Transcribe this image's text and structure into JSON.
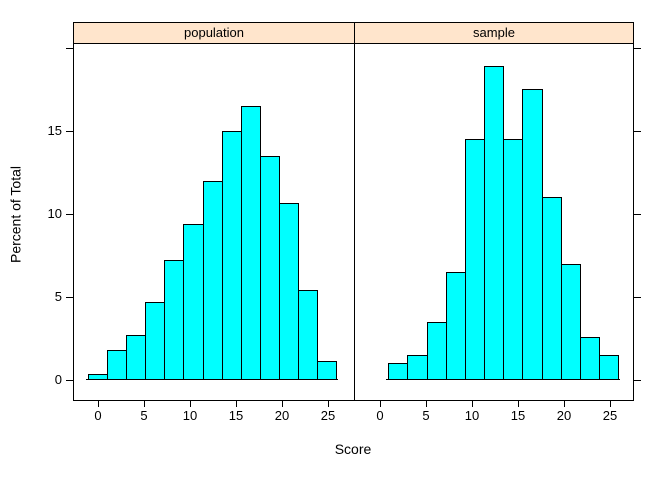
{
  "chart_data": {
    "type": "histogram",
    "title": "",
    "xlabel": "Score",
    "ylabel": "Percent of Total",
    "legend": null,
    "grid": false,
    "x_ticks": [
      0,
      5,
      10,
      15,
      20,
      25
    ],
    "y_ticks_labeled": [
      0,
      5,
      10,
      15
    ],
    "y_ticks_unlabeled": [
      20
    ],
    "xlim": [
      -2.8,
      26.8
    ],
    "ylim": [
      -1.2,
      21.5
    ],
    "panels": [
      {
        "label": "population",
        "bin_start": -1.1,
        "bin_end": 25.9,
        "bin_count": 13,
        "percent_values": [
          0.35,
          1.8,
          2.7,
          4.7,
          7.2,
          9.4,
          12.0,
          15.0,
          16.5,
          13.5,
          10.65,
          5.45,
          1.15
        ]
      },
      {
        "label": "sample",
        "bin_start": 0.9,
        "bin_end": 25.9,
        "bin_count": 12,
        "percent_values": [
          1.0,
          1.5,
          3.5,
          6.5,
          14.5,
          18.9,
          14.5,
          17.5,
          11.0,
          7.0,
          2.6,
          1.5
        ]
      }
    ],
    "colors": {
      "bar_fill": "#00ffff",
      "bar_border": "#000000",
      "strip_fill": "#ffe5cc",
      "panel_border": "#000000",
      "background": "#ffffff",
      "text": "#000000"
    }
  }
}
